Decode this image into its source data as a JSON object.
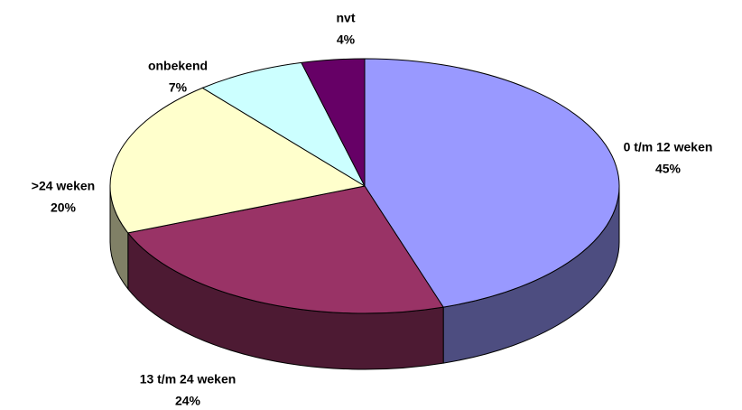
{
  "chart_data": {
    "type": "pie",
    "categories": [
      "0 t/m 12 weken",
      "13 t/m 24 weken",
      ">24 weken",
      "onbekend",
      "nvt"
    ],
    "values": [
      45,
      24,
      20,
      7,
      4
    ],
    "value_labels": [
      "45%",
      "24%",
      "20%",
      "7%",
      "4%"
    ],
    "colors": [
      "#9999ff",
      "#993366",
      "#ffffcc",
      "#ccffff",
      "#660066"
    ]
  }
}
